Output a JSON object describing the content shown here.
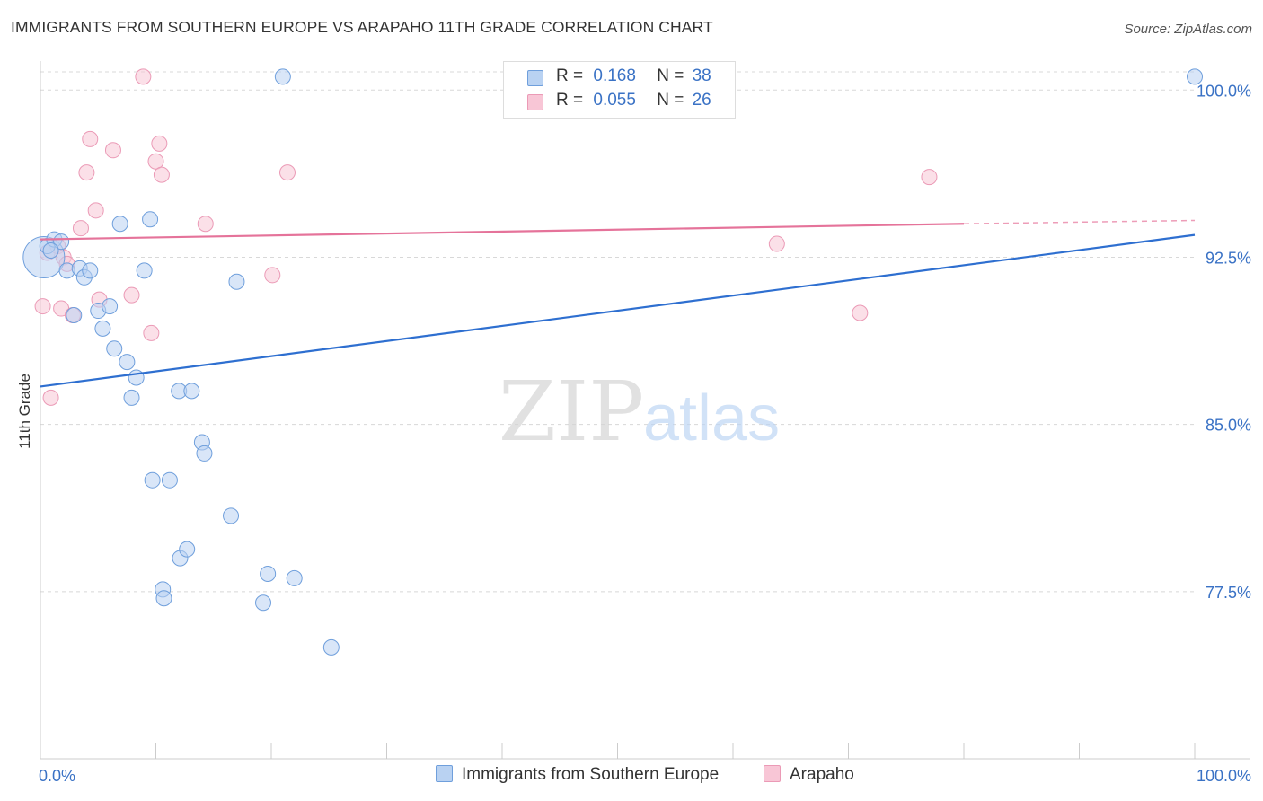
{
  "title": "IMMIGRANTS FROM SOUTHERN EUROPE VS ARAPAHO 11TH GRADE CORRELATION CHART",
  "source": "Source: ZipAtlas.com",
  "watermark": {
    "zip": "ZIP",
    "atlas": "atlas"
  },
  "colors": {
    "blue_fill": "#b9d2f2",
    "blue_stroke": "#6f9fdc",
    "blue_line": "#2e6fd0",
    "pink_fill": "#f8c6d6",
    "pink_stroke": "#eb9ab6",
    "pink_line": "#e5739a",
    "axis_label": "#3a72c5",
    "grid": "#d8d8d8"
  },
  "legend_top": [
    {
      "r_label": "R =",
      "r_value": "0.168",
      "n_label": "N =",
      "n_value": "38"
    },
    {
      "r_label": "R =",
      "r_value": "0.055",
      "n_label": "N =",
      "n_value": "26"
    }
  ],
  "legend_bottom": [
    "Immigrants from Southern Europe",
    "Arapaho"
  ],
  "chart_data": {
    "type": "scatter",
    "title": "IMMIGRANTS FROM SOUTHERN EUROPE VS ARAPAHO 11TH GRADE CORRELATION CHART",
    "xlabel": "",
    "ylabel": "11th Grade",
    "xlim": [
      0,
      100
    ],
    "ylim": [
      70,
      101.3
    ],
    "x_tick_labels": [
      "0.0%",
      "100.0%"
    ],
    "y_ticks": [
      77.5,
      85.0,
      92.5,
      100.0
    ],
    "y_tick_labels": [
      "77.5%",
      "85.0%",
      "92.5%",
      "100.0%"
    ],
    "grid": true,
    "series": [
      {
        "name": "Immigrants from Southern Europe",
        "color": "blue",
        "trend": {
          "x": [
            0,
            100
          ],
          "y": [
            86.7,
            93.5
          ]
        },
        "points": [
          {
            "x": 0.3,
            "y": 92.5,
            "big": true
          },
          {
            "x": 0.6,
            "y": 93.0
          },
          {
            "x": 1.2,
            "y": 93.3
          },
          {
            "x": 1.8,
            "y": 93.2
          },
          {
            "x": 2.3,
            "y": 91.9
          },
          {
            "x": 2.9,
            "y": 89.9
          },
          {
            "x": 3.4,
            "y": 92.0
          },
          {
            "x": 3.8,
            "y": 91.6
          },
          {
            "x": 4.3,
            "y": 91.9
          },
          {
            "x": 5.0,
            "y": 90.1
          },
          {
            "x": 5.4,
            "y": 89.3
          },
          {
            "x": 6.0,
            "y": 90.3
          },
          {
            "x": 6.4,
            "y": 88.4
          },
          {
            "x": 6.9,
            "y": 94.0
          },
          {
            "x": 7.5,
            "y": 87.8
          },
          {
            "x": 7.9,
            "y": 86.2
          },
          {
            "x": 8.3,
            "y": 87.1
          },
          {
            "x": 9.0,
            "y": 91.9
          },
          {
            "x": 9.5,
            "y": 94.2
          },
          {
            "x": 9.7,
            "y": 82.5
          },
          {
            "x": 11.2,
            "y": 82.5
          },
          {
            "x": 12.0,
            "y": 86.5
          },
          {
            "x": 13.1,
            "y": 86.5
          },
          {
            "x": 14.0,
            "y": 84.2
          },
          {
            "x": 14.2,
            "y": 83.7
          },
          {
            "x": 10.6,
            "y": 77.6
          },
          {
            "x": 10.7,
            "y": 77.2
          },
          {
            "x": 12.1,
            "y": 79.0
          },
          {
            "x": 12.7,
            "y": 79.4
          },
          {
            "x": 16.5,
            "y": 80.9
          },
          {
            "x": 17.0,
            "y": 91.4
          },
          {
            "x": 19.3,
            "y": 77.0
          },
          {
            "x": 19.7,
            "y": 78.3
          },
          {
            "x": 21.0,
            "y": 100.6
          },
          {
            "x": 22.0,
            "y": 78.1
          },
          {
            "x": 25.2,
            "y": 75.0
          },
          {
            "x": 100.0,
            "y": 100.6
          },
          {
            "x": 0.9,
            "y": 92.8
          }
        ]
      },
      {
        "name": "Arapaho",
        "color": "pink",
        "trend": {
          "x": [
            0,
            80
          ],
          "y": [
            93.3,
            94.0
          ]
        },
        "trend_dashed": {
          "x": [
            80,
            100
          ],
          "y": [
            94.0,
            94.15
          ]
        },
        "points": [
          {
            "x": 0.2,
            "y": 90.3
          },
          {
            "x": 0.6,
            "y": 92.7
          },
          {
            "x": 0.9,
            "y": 86.2
          },
          {
            "x": 1.5,
            "y": 93.0
          },
          {
            "x": 1.8,
            "y": 90.2
          },
          {
            "x": 2.0,
            "y": 92.5
          },
          {
            "x": 2.3,
            "y": 92.2
          },
          {
            "x": 2.8,
            "y": 89.9
          },
          {
            "x": 3.5,
            "y": 93.8
          },
          {
            "x": 4.0,
            "y": 96.3
          },
          {
            "x": 4.3,
            "y": 97.8
          },
          {
            "x": 4.8,
            "y": 94.6
          },
          {
            "x": 5.1,
            "y": 90.6
          },
          {
            "x": 6.3,
            "y": 97.3
          },
          {
            "x": 7.9,
            "y": 90.8
          },
          {
            "x": 8.9,
            "y": 100.6
          },
          {
            "x": 9.6,
            "y": 89.1
          },
          {
            "x": 10.0,
            "y": 96.8
          },
          {
            "x": 10.3,
            "y": 97.6
          },
          {
            "x": 10.5,
            "y": 96.2
          },
          {
            "x": 14.3,
            "y": 94.0
          },
          {
            "x": 20.1,
            "y": 91.7
          },
          {
            "x": 21.4,
            "y": 96.3
          },
          {
            "x": 63.8,
            "y": 93.1
          },
          {
            "x": 71.0,
            "y": 90.0
          },
          {
            "x": 77.0,
            "y": 96.1
          }
        ]
      }
    ]
  }
}
